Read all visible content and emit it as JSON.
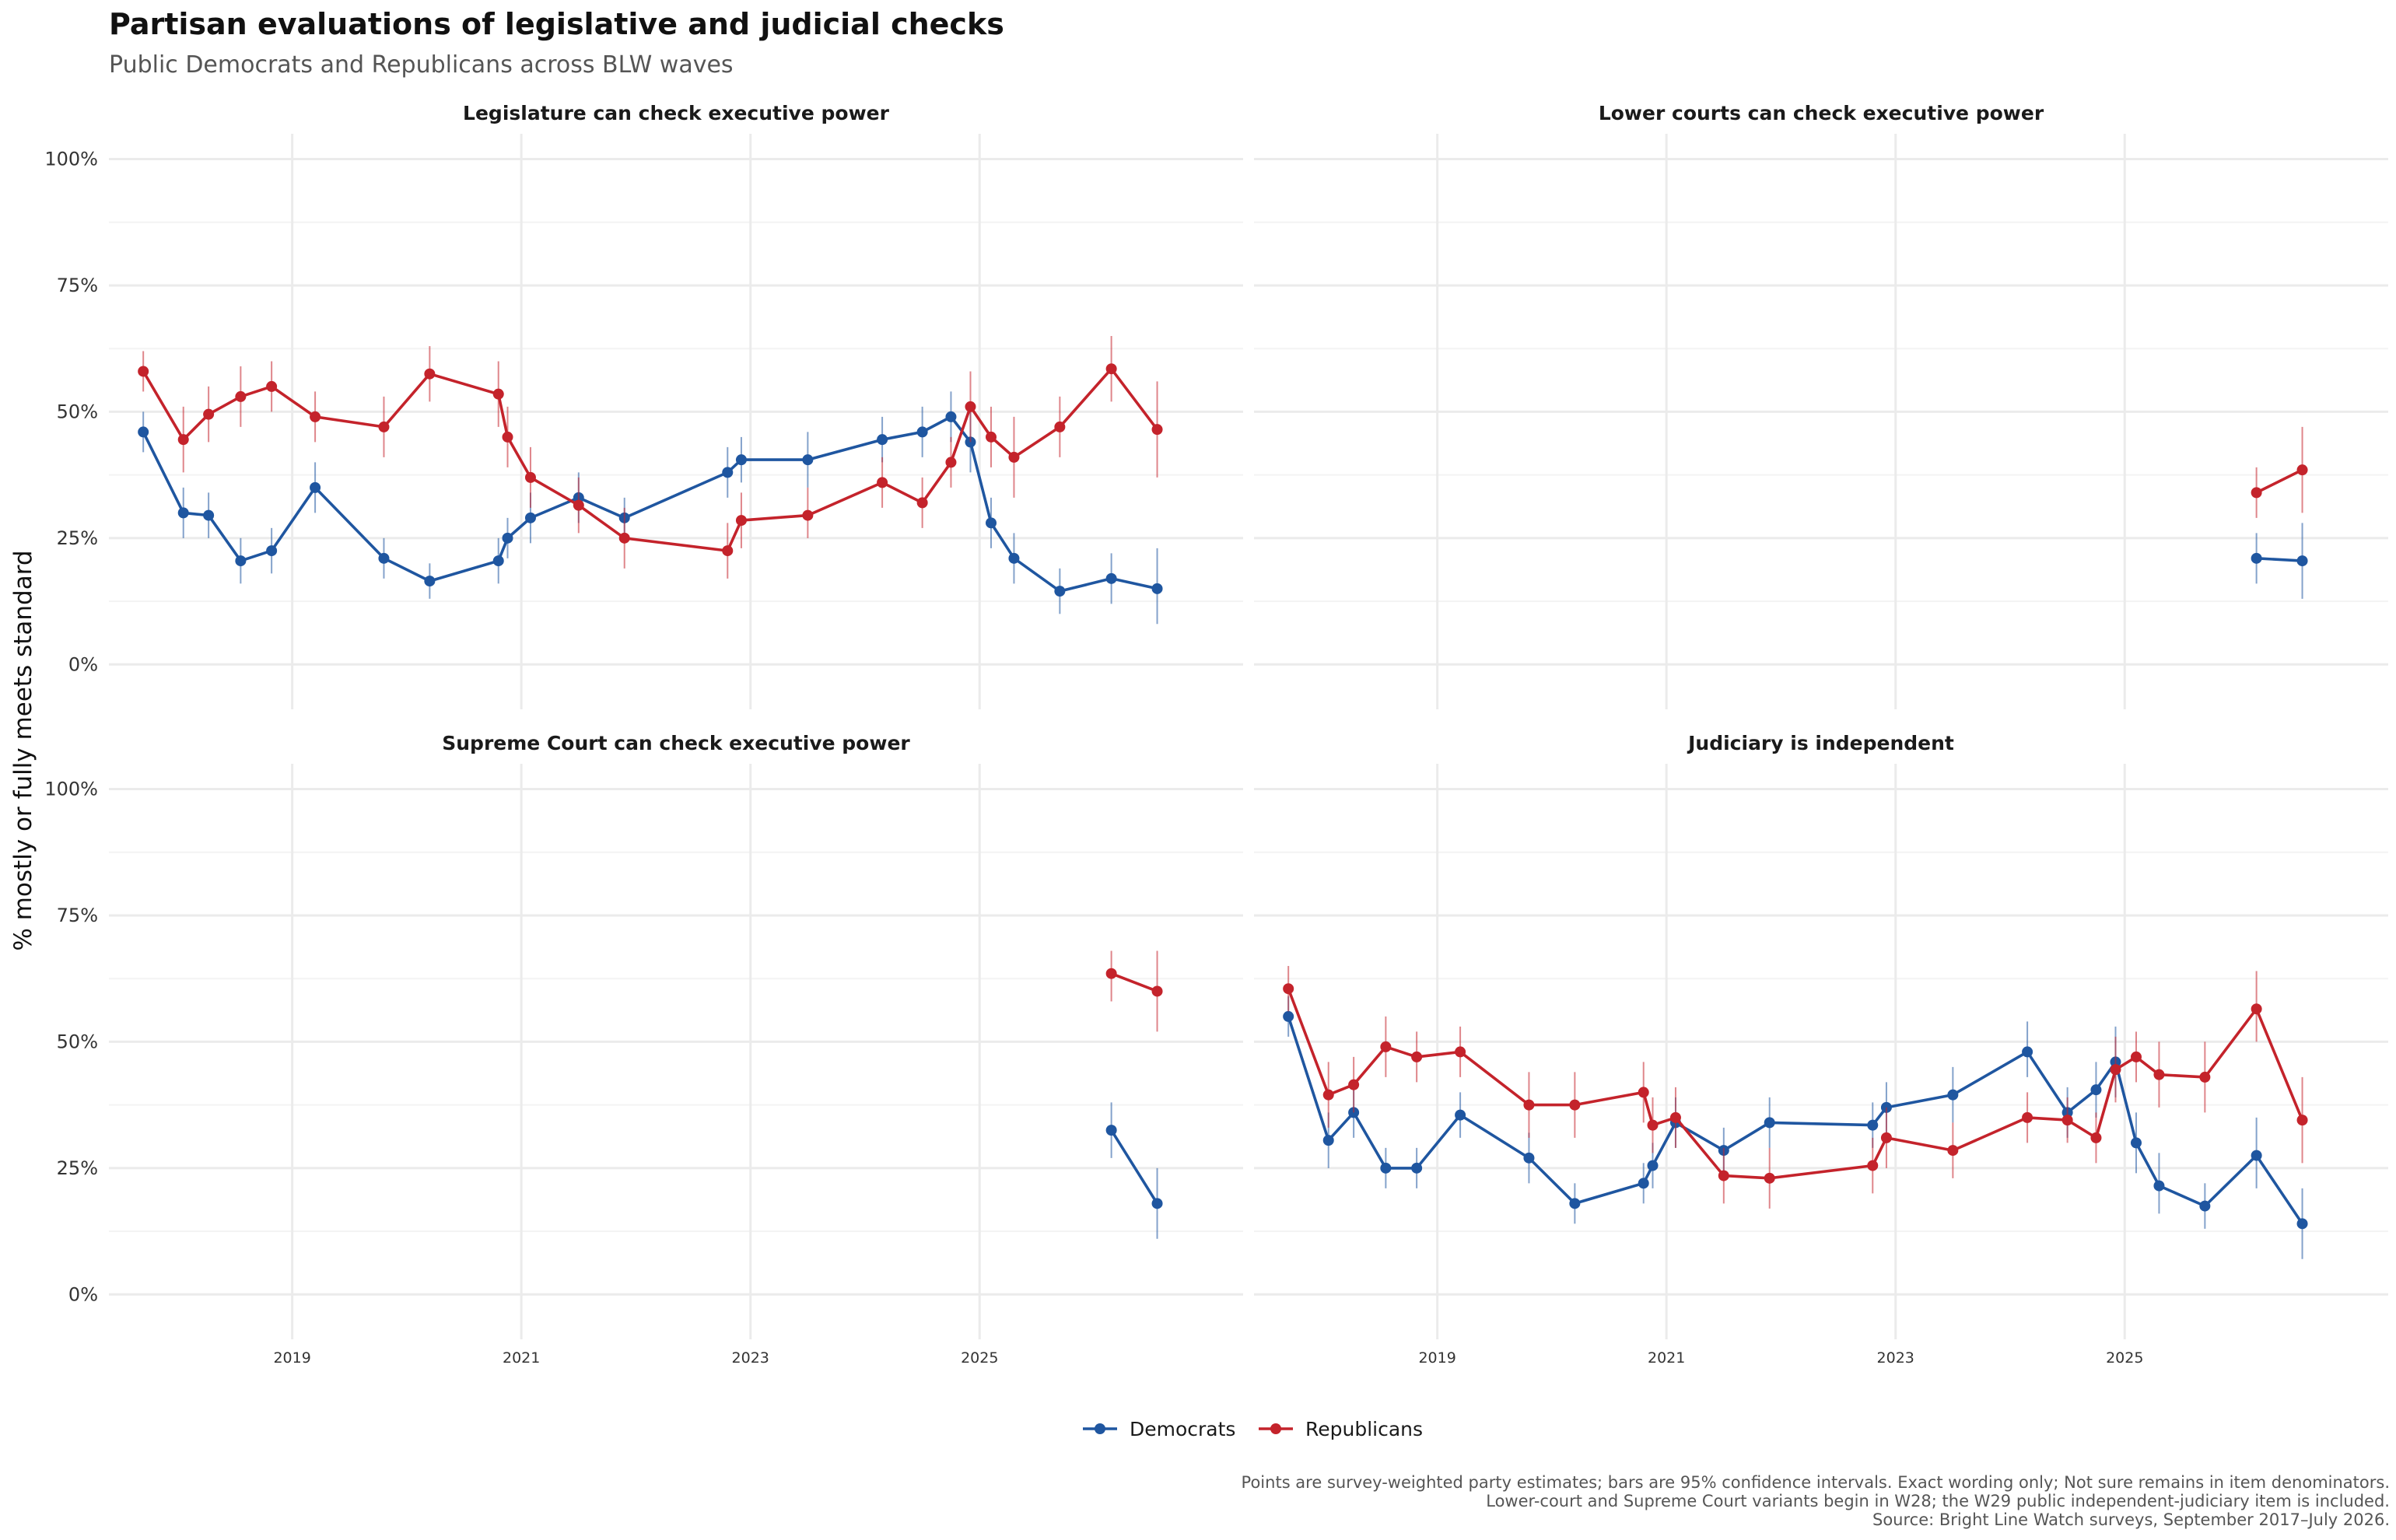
{
  "title": "Partisan evaluations of legislative and judicial checks",
  "subtitle": "Public Democrats and Republicans across BLW waves",
  "y_axis_label": "% mostly or fully meets standard",
  "y_tick_labels": [
    "0%",
    "25%",
    "50%",
    "75%",
    "100%"
  ],
  "x_tick_labels": [
    "2019",
    "2021",
    "2023",
    "2025"
  ],
  "legend": [
    {
      "name": "Democrats",
      "color": "#1f56a0"
    },
    {
      "name": "Republicans",
      "color": "#c4232b"
    }
  ],
  "caption": [
    "Points are survey-weighted party estimates; bars are 95% confidence intervals. Exact wording only; Not sure remains in item denominators.",
    "Lower-court and Supreme Court variants begin in W28; the W29 public independent-judiciary item is included.",
    "Source: Bright Line Watch surveys, September 2017–July 2026."
  ],
  "colors": {
    "democrats": "#1f56a0",
    "republicans": "#c4232b",
    "grid": "#ebebeb"
  },
  "chart_data": {
    "type": "line",
    "x_unit": "year (decimal)",
    "xlim": [
      2017.4,
      2027.3
    ],
    "ylim": [
      0,
      100
    ],
    "grid": true,
    "legend_position": "bottom",
    "facets": [
      {
        "title": "Legislature can check executive power",
        "series": [
          {
            "name": "Democrats",
            "points": [
              {
                "x": 2017.7,
                "y": 46,
                "lo": 42,
                "hi": 50
              },
              {
                "x": 2018.05,
                "y": 30,
                "lo": 25,
                "hi": 35
              },
              {
                "x": 2018.27,
                "y": 29.5,
                "lo": 25,
                "hi": 34
              },
              {
                "x": 2018.55,
                "y": 20.5,
                "lo": 16,
                "hi": 25
              },
              {
                "x": 2018.82,
                "y": 22.5,
                "lo": 18,
                "hi": 27
              },
              {
                "x": 2019.2,
                "y": 35,
                "lo": 30,
                "hi": 40
              },
              {
                "x": 2019.8,
                "y": 21,
                "lo": 17,
                "hi": 25
              },
              {
                "x": 2020.2,
                "y": 16.5,
                "lo": 13,
                "hi": 20
              },
              {
                "x": 2020.8,
                "y": 20.5,
                "lo": 16,
                "hi": 25
              },
              {
                "x": 2020.88,
                "y": 25,
                "lo": 21,
                "hi": 29
              },
              {
                "x": 2021.08,
                "y": 29,
                "lo": 24,
                "hi": 34
              },
              {
                "x": 2021.5,
                "y": 33,
                "lo": 28,
                "hi": 38
              },
              {
                "x": 2021.9,
                "y": 29,
                "lo": 25,
                "hi": 33
              },
              {
                "x": 2022.8,
                "y": 38,
                "lo": 33,
                "hi": 43
              },
              {
                "x": 2022.92,
                "y": 40.5,
                "lo": 36,
                "hi": 45
              },
              {
                "x": 2023.5,
                "y": 40.5,
                "lo": 35,
                "hi": 46
              },
              {
                "x": 2024.15,
                "y": 44.5,
                "lo": 40,
                "hi": 49
              },
              {
                "x": 2024.5,
                "y": 46,
                "lo": 41,
                "hi": 51
              },
              {
                "x": 2024.75,
                "y": 49,
                "lo": 44,
                "hi": 54
              },
              {
                "x": 2024.92,
                "y": 44,
                "lo": 38,
                "hi": 50
              },
              {
                "x": 2025.1,
                "y": 28,
                "lo": 23,
                "hi": 33
              },
              {
                "x": 2025.3,
                "y": 21,
                "lo": 16,
                "hi": 26
              },
              {
                "x": 2025.7,
                "y": 14.5,
                "lo": 10,
                "hi": 19
              },
              {
                "x": 2026.15,
                "y": 17,
                "lo": 12,
                "hi": 22
              },
              {
                "x": 2026.55,
                "y": 15,
                "lo": 8,
                "hi": 23
              }
            ]
          },
          {
            "name": "Republicans",
            "points": [
              {
                "x": 2017.7,
                "y": 58,
                "lo": 54,
                "hi": 62
              },
              {
                "x": 2018.05,
                "y": 44.5,
                "lo": 38,
                "hi": 51
              },
              {
                "x": 2018.27,
                "y": 49.5,
                "lo": 44,
                "hi": 55
              },
              {
                "x": 2018.55,
                "y": 53,
                "lo": 47,
                "hi": 59
              },
              {
                "x": 2018.82,
                "y": 55,
                "lo": 50,
                "hi": 60
              },
              {
                "x": 2019.2,
                "y": 49,
                "lo": 44,
                "hi": 54
              },
              {
                "x": 2019.8,
                "y": 47,
                "lo": 41,
                "hi": 53
              },
              {
                "x": 2020.2,
                "y": 57.5,
                "lo": 52,
                "hi": 63
              },
              {
                "x": 2020.8,
                "y": 53.5,
                "lo": 47,
                "hi": 60
              },
              {
                "x": 2020.88,
                "y": 45,
                "lo": 39,
                "hi": 51
              },
              {
                "x": 2021.08,
                "y": 37,
                "lo": 31,
                "hi": 43
              },
              {
                "x": 2021.5,
                "y": 31.5,
                "lo": 26,
                "hi": 37
              },
              {
                "x": 2021.9,
                "y": 25,
                "lo": 19,
                "hi": 31
              },
              {
                "x": 2022.8,
                "y": 22.5,
                "lo": 17,
                "hi": 28
              },
              {
                "x": 2022.92,
                "y": 28.5,
                "lo": 23,
                "hi": 34
              },
              {
                "x": 2023.5,
                "y": 29.5,
                "lo": 25,
                "hi": 35
              },
              {
                "x": 2024.15,
                "y": 36,
                "lo": 31,
                "hi": 41
              },
              {
                "x": 2024.5,
                "y": 32,
                "lo": 27,
                "hi": 37
              },
              {
                "x": 2024.75,
                "y": 40,
                "lo": 35,
                "hi": 45
              },
              {
                "x": 2024.92,
                "y": 51,
                "lo": 44,
                "hi": 58
              },
              {
                "x": 2025.1,
                "y": 45,
                "lo": 39,
                "hi": 51
              },
              {
                "x": 2025.3,
                "y": 41,
                "lo": 33,
                "hi": 49
              },
              {
                "x": 2025.7,
                "y": 47,
                "lo": 41,
                "hi": 53
              },
              {
                "x": 2026.15,
                "y": 58.5,
                "lo": 52,
                "hi": 65
              },
              {
                "x": 2026.55,
                "y": 46.5,
                "lo": 37,
                "hi": 56
              }
            ]
          }
        ]
      },
      {
        "title": "Lower courts can check executive power",
        "series": [
          {
            "name": "Democrats",
            "points": [
              {
                "x": 2026.15,
                "y": 21,
                "lo": 16,
                "hi": 26
              },
              {
                "x": 2026.55,
                "y": 20.5,
                "lo": 13,
                "hi": 28
              }
            ]
          },
          {
            "name": "Republicans",
            "points": [
              {
                "x": 2026.15,
                "y": 34,
                "lo": 29,
                "hi": 39
              },
              {
                "x": 2026.55,
                "y": 38.5,
                "lo": 30,
                "hi": 47
              }
            ]
          }
        ]
      },
      {
        "title": "Supreme Court can check executive power",
        "series": [
          {
            "name": "Democrats",
            "points": [
              {
                "x": 2026.15,
                "y": 32.5,
                "lo": 27,
                "hi": 38
              },
              {
                "x": 2026.55,
                "y": 18,
                "lo": 11,
                "hi": 25
              }
            ]
          },
          {
            "name": "Republicans",
            "points": [
              {
                "x": 2026.15,
                "y": 63.5,
                "lo": 58,
                "hi": 68
              },
              {
                "x": 2026.55,
                "y": 60,
                "lo": 52,
                "hi": 68
              }
            ]
          }
        ]
      },
      {
        "title": "Judiciary is independent",
        "series": [
          {
            "name": "Democrats",
            "points": [
              {
                "x": 2017.7,
                "y": 55,
                "lo": 51,
                "hi": 59
              },
              {
                "x": 2018.05,
                "y": 30.5,
                "lo": 25,
                "hi": 36
              },
              {
                "x": 2018.27,
                "y": 36,
                "lo": 31,
                "hi": 41
              },
              {
                "x": 2018.55,
                "y": 25,
                "lo": 21,
                "hi": 29
              },
              {
                "x": 2018.82,
                "y": 25,
                "lo": 21,
                "hi": 29
              },
              {
                "x": 2019.2,
                "y": 35.5,
                "lo": 31,
                "hi": 40
              },
              {
                "x": 2019.8,
                "y": 27,
                "lo": 22,
                "hi": 32
              },
              {
                "x": 2020.2,
                "y": 18,
                "lo": 14,
                "hi": 22
              },
              {
                "x": 2020.8,
                "y": 22,
                "lo": 18,
                "hi": 26
              },
              {
                "x": 2020.88,
                "y": 25.5,
                "lo": 21,
                "hi": 30
              },
              {
                "x": 2021.08,
                "y": 34,
                "lo": 29,
                "hi": 39
              },
              {
                "x": 2021.5,
                "y": 28.5,
                "lo": 24,
                "hi": 33
              },
              {
                "x": 2021.9,
                "y": 34,
                "lo": 29,
                "hi": 39
              },
              {
                "x": 2022.8,
                "y": 33.5,
                "lo": 29,
                "hi": 38
              },
              {
                "x": 2022.92,
                "y": 37,
                "lo": 32,
                "hi": 42
              },
              {
                "x": 2023.5,
                "y": 39.5,
                "lo": 34,
                "hi": 45
              },
              {
                "x": 2024.15,
                "y": 48,
                "lo": 43,
                "hi": 54
              },
              {
                "x": 2024.5,
                "y": 36,
                "lo": 31,
                "hi": 41
              },
              {
                "x": 2024.75,
                "y": 40.5,
                "lo": 35,
                "hi": 46
              },
              {
                "x": 2024.92,
                "y": 46,
                "lo": 39,
                "hi": 53
              },
              {
                "x": 2025.1,
                "y": 30,
                "lo": 24,
                "hi": 36
              },
              {
                "x": 2025.3,
                "y": 21.5,
                "lo": 16,
                "hi": 28
              },
              {
                "x": 2025.7,
                "y": 17.5,
                "lo": 13,
                "hi": 22
              },
              {
                "x": 2026.15,
                "y": 27.5,
                "lo": 21,
                "hi": 35
              },
              {
                "x": 2026.55,
                "y": 14,
                "lo": 7,
                "hi": 21
              }
            ]
          },
          {
            "name": "Republicans",
            "points": [
              {
                "x": 2017.7,
                "y": 60.5,
                "lo": 56,
                "hi": 65
              },
              {
                "x": 2018.05,
                "y": 39.5,
                "lo": 33,
                "hi": 46
              },
              {
                "x": 2018.27,
                "y": 41.5,
                "lo": 36,
                "hi": 47
              },
              {
                "x": 2018.55,
                "y": 49,
                "lo": 43,
                "hi": 55
              },
              {
                "x": 2018.82,
                "y": 47,
                "lo": 42,
                "hi": 52
              },
              {
                "x": 2019.2,
                "y": 48,
                "lo": 43,
                "hi": 53
              },
              {
                "x": 2019.8,
                "y": 37.5,
                "lo": 31,
                "hi": 44
              },
              {
                "x": 2020.2,
                "y": 37.5,
                "lo": 31,
                "hi": 44
              },
              {
                "x": 2020.8,
                "y": 40,
                "lo": 34,
                "hi": 46
              },
              {
                "x": 2020.88,
                "y": 33.5,
                "lo": 28,
                "hi": 39
              },
              {
                "x": 2021.08,
                "y": 35,
                "lo": 29,
                "hi": 41
              },
              {
                "x": 2021.5,
                "y": 23.5,
                "lo": 18,
                "hi": 29
              },
              {
                "x": 2021.9,
                "y": 23,
                "lo": 17,
                "hi": 29
              },
              {
                "x": 2022.8,
                "y": 25.5,
                "lo": 20,
                "hi": 31
              },
              {
                "x": 2022.92,
                "y": 31,
                "lo": 25,
                "hi": 37
              },
              {
                "x": 2023.5,
                "y": 28.5,
                "lo": 23,
                "hi": 34
              },
              {
                "x": 2024.15,
                "y": 35,
                "lo": 30,
                "hi": 40
              },
              {
                "x": 2024.5,
                "y": 34.5,
                "lo": 30,
                "hi": 39
              },
              {
                "x": 2024.75,
                "y": 31,
                "lo": 26,
                "hi": 36
              },
              {
                "x": 2024.92,
                "y": 44.5,
                "lo": 38,
                "hi": 51
              },
              {
                "x": 2025.1,
                "y": 47,
                "lo": 42,
                "hi": 52
              },
              {
                "x": 2025.3,
                "y": 43.5,
                "lo": 37,
                "hi": 50
              },
              {
                "x": 2025.7,
                "y": 43,
                "lo": 36,
                "hi": 50
              },
              {
                "x": 2026.15,
                "y": 56.5,
                "lo": 50,
                "hi": 64
              },
              {
                "x": 2026.55,
                "y": 34.5,
                "lo": 26,
                "hi": 43
              }
            ]
          }
        ]
      }
    ]
  }
}
